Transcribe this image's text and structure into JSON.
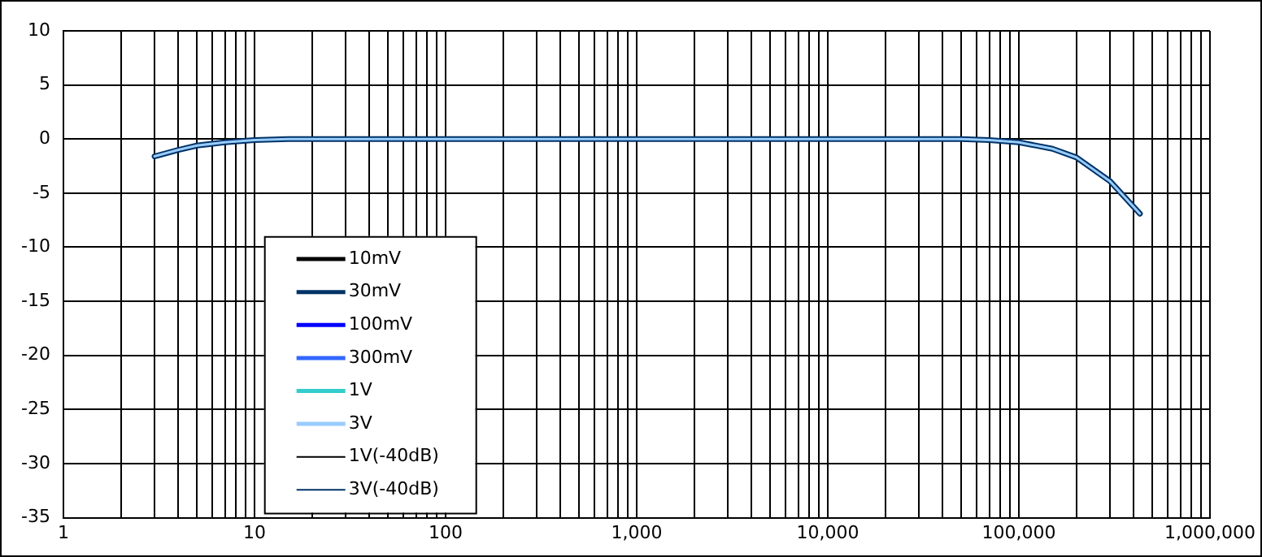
{
  "chart_data": {
    "type": "line",
    "log": "x",
    "x": [
      3,
      4,
      5,
      7,
      10,
      15,
      20,
      50000,
      70000,
      100000,
      150000,
      200000,
      300000,
      430000
    ],
    "series": [
      {
        "name": "10mV",
        "color": "#000000",
        "values": [
          null,
          null,
          null,
          null,
          null,
          null,
          null,
          null,
          null,
          null,
          null,
          null,
          null,
          null
        ]
      },
      {
        "name": "30mV",
        "color": "#003366",
        "values": [
          -1.6,
          -1.0,
          -0.6,
          -0.3,
          -0.1,
          0,
          0,
          0,
          -0.1,
          -0.3,
          -0.9,
          -1.7,
          -3.9,
          -6.9
        ]
      },
      {
        "name": "100mV",
        "color": "#0000ff",
        "values": [
          null,
          null,
          null,
          null,
          null,
          null,
          null,
          null,
          null,
          null,
          null,
          null,
          null,
          null
        ]
      },
      {
        "name": "300mV",
        "color": "#3366ff",
        "values": [
          null,
          null,
          null,
          null,
          null,
          null,
          null,
          null,
          null,
          null,
          null,
          null,
          null,
          null
        ]
      },
      {
        "name": "1V",
        "color": "#33cccc",
        "values": [
          null,
          null,
          null,
          null,
          null,
          null,
          null,
          null,
          null,
          null,
          null,
          null,
          null,
          null
        ]
      },
      {
        "name": "3V",
        "color": "#99ccff",
        "values": [
          -1.6,
          -1.0,
          -0.6,
          -0.3,
          -0.1,
          0,
          0,
          0,
          -0.1,
          -0.3,
          -0.9,
          -1.7,
          -3.9,
          -6.9
        ]
      },
      {
        "name": "1V(-40dB)",
        "color": "#000000",
        "values": [
          null,
          null,
          null,
          null,
          null,
          null,
          null,
          null,
          null,
          null,
          null,
          null,
          null,
          null
        ]
      },
      {
        "name": "3V(-40dB)",
        "color": "#003366",
        "values": [
          null,
          null,
          null,
          null,
          null,
          null,
          null,
          null,
          null,
          null,
          null,
          null,
          null,
          null
        ]
      }
    ],
    "xlim": [
      1,
      1000000
    ],
    "xticks": [
      1,
      10,
      100,
      {
        "value": 1000,
        "label": "1,000"
      },
      {
        "value": 10000,
        "label": "10,000"
      },
      {
        "value": 100000,
        "label": "100,000"
      },
      {
        "value": 1000000,
        "label": "1,000,000"
      }
    ],
    "ylim": [
      -35,
      10
    ],
    "yticks": [
      -35,
      -30,
      -25,
      -20,
      -15,
      -10,
      -5,
      0,
      5,
      10
    ],
    "grid": true,
    "legend": "bottom left",
    "marker": "none",
    "line_style": "solid"
  }
}
